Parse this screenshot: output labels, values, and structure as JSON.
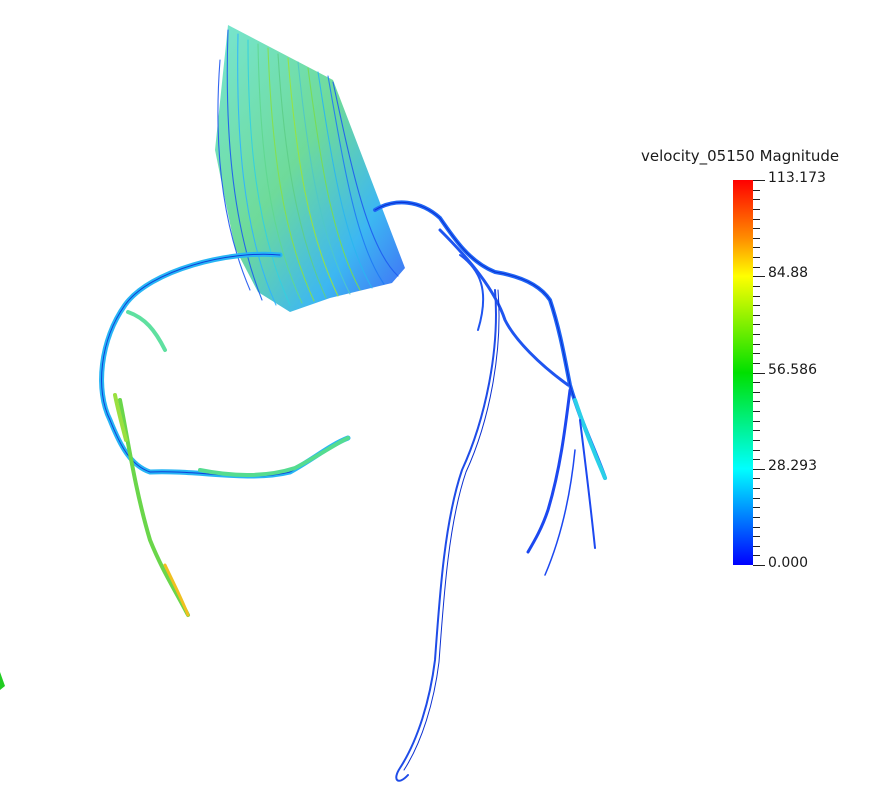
{
  "legend": {
    "title": "velocity_05150 Magnitude",
    "ticks": [
      {
        "label": "113.173",
        "value": 113.173
      },
      {
        "label": "84.88",
        "value": 84.88
      },
      {
        "label": "56.586",
        "value": 56.586
      },
      {
        "label": "28.293",
        "value": 28.293
      },
      {
        "label": "0.000",
        "value": 0.0
      }
    ],
    "range": [
      0.0,
      113.173
    ],
    "colormap": [
      "#0000ff",
      "#00ffff",
      "#00e000",
      "#ffff00",
      "#ff8c00",
      "#ff0000"
    ]
  },
  "scene": {
    "description_colors": {
      "low_velocity": "#1f5cff",
      "mid_velocity": "#19c8ff",
      "high_velocity": "#7ddc2a"
    }
  }
}
